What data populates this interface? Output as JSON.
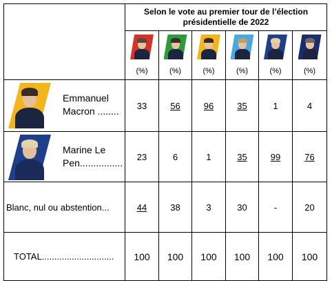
{
  "header": {
    "title": "Selon le vote au premier tour de l’élection présidentielle de 2022"
  },
  "candidates": [
    {
      "icon": "candidate-1-portrait-icon",
      "bg_color": "#d6322a",
      "hair_color": "#5a4a3a",
      "unit": "(%)"
    },
    {
      "icon": "candidate-2-portrait-icon",
      "bg_color": "#2e9a3a",
      "hair_color": "#3a3028",
      "unit": "(%)"
    },
    {
      "icon": "candidate-3-portrait-icon",
      "bg_color": "#f2b51c",
      "hair_color": "#3a2a22",
      "unit": "(%)"
    },
    {
      "icon": "candidate-4-portrait-icon",
      "bg_color": "#4aa8e0",
      "hair_color": "#b9a070",
      "unit": "(%)"
    },
    {
      "icon": "candidate-5-portrait-icon",
      "bg_color": "#1f3f8a",
      "hair_color": "#e2d4a8",
      "unit": "(%)"
    },
    {
      "icon": "candidate-6-portrait-icon",
      "bg_color": "#1c2d6e",
      "hair_color": "#6a6a6a",
      "unit": "(%)"
    }
  ],
  "rows": [
    {
      "name_line1": "Emmanuel",
      "name_line2": "Macron ........",
      "portrait_bg": "#f2b51c",
      "portrait_hair": "#3a2a22",
      "portrait_body": "#1c2540",
      "values": [
        "33",
        "56",
        "96",
        "35",
        "1",
        "4"
      ],
      "underlined": [
        false,
        true,
        true,
        true,
        false,
        false
      ]
    },
    {
      "name_line1": "Marine Le",
      "name_line2": "Pen................",
      "portrait_bg": "#1f3f8a",
      "portrait_hair": "#e2d4a8",
      "portrait_body": "#1a2a5a",
      "values": [
        "23",
        "6",
        "1",
        "35",
        "99",
        "76"
      ],
      "underlined": [
        false,
        false,
        false,
        true,
        true,
        true
      ]
    },
    {
      "label": "Blanc, nul ou abstention...",
      "values": [
        "44",
        "38",
        "3",
        "30",
        "-",
        "20"
      ],
      "underlined": [
        true,
        false,
        false,
        false,
        false,
        false
      ]
    },
    {
      "label": "TOTAL.............................",
      "values": [
        "100",
        "100",
        "100",
        "100",
        "100",
        "100"
      ],
      "underlined": [
        false,
        false,
        false,
        false,
        false,
        false
      ]
    }
  ]
}
